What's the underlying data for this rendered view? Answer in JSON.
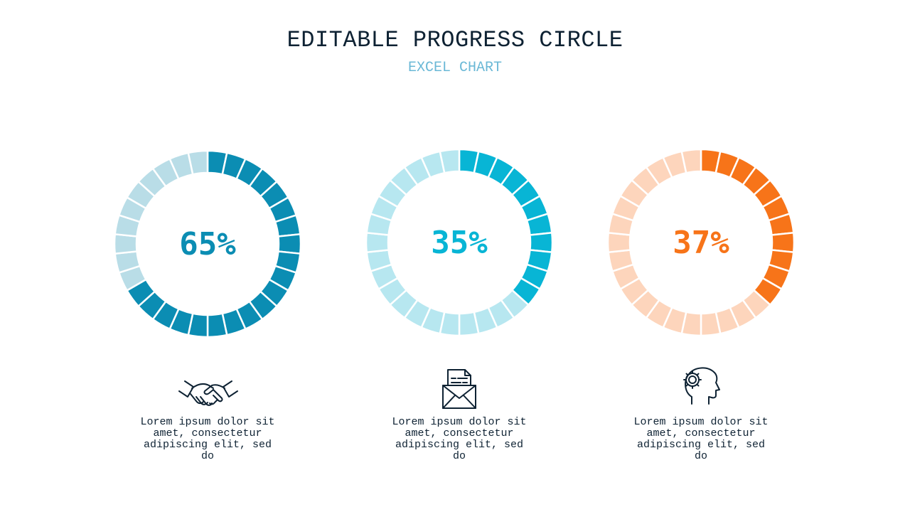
{
  "header": {
    "title": "EDITABLE PROGRESS CIRCLE",
    "subtitle": "EXCEL CHART"
  },
  "chart_data": [
    {
      "type": "pie",
      "value_label": "65%",
      "values": [
        65,
        35
      ],
      "segments": 30,
      "colors": {
        "filled": "#0b8db3",
        "track": "#b9dde7",
        "text": "#0b8db3"
      },
      "icon": "handshake-icon",
      "description": "Lorem ipsum dolor sit amet, consectetur adipiscing elit, sed do"
    },
    {
      "type": "pie",
      "value_label": "35%",
      "values": [
        35,
        65
      ],
      "segments": 30,
      "colors": {
        "filled": "#08b5d5",
        "track": "#b7e7f0",
        "text": "#08b5d5"
      },
      "icon": "envelope-document-icon",
      "description": "Lorem ipsum dolor sit amet, consectetur adipiscing elit, sed do"
    },
    {
      "type": "pie",
      "value_label": "37%",
      "values": [
        37,
        63
      ],
      "segments": 30,
      "colors": {
        "filled": "#f77419",
        "track": "#fdd5bc",
        "text": "#f77419"
      },
      "icon": "head-gear-icon",
      "description": "Lorem ipsum dolor sit amet, consectetur adipiscing elit, sed do"
    }
  ]
}
